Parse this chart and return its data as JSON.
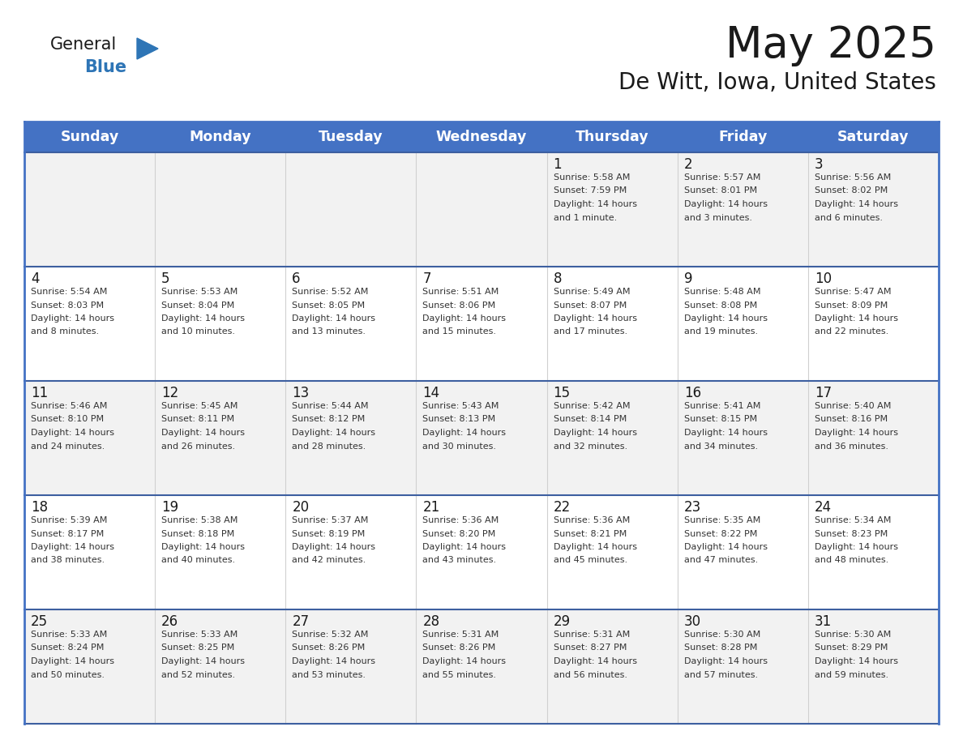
{
  "title": "May 2025",
  "subtitle": "De Witt, Iowa, United States",
  "header_bg": "#4472C4",
  "header_text_color": "#FFFFFF",
  "day_names": [
    "Sunday",
    "Monday",
    "Tuesday",
    "Wednesday",
    "Thursday",
    "Friday",
    "Saturday"
  ],
  "title_color": "#1a1a1a",
  "subtitle_color": "#1a1a1a",
  "cell_bg_odd": "#f2f2f2",
  "cell_bg_even": "#ffffff",
  "border_color": "#4472C4",
  "row_border_color": "#3d5fa0",
  "col_border_color": "#d0d0d0",
  "day_number_color": "#1a1a1a",
  "day_text_color": "#333333",
  "calendar": [
    [
      {
        "day": null,
        "text": ""
      },
      {
        "day": null,
        "text": ""
      },
      {
        "day": null,
        "text": ""
      },
      {
        "day": null,
        "text": ""
      },
      {
        "day": 1,
        "text": "Sunrise: 5:58 AM\nSunset: 7:59 PM\nDaylight: 14 hours\nand 1 minute."
      },
      {
        "day": 2,
        "text": "Sunrise: 5:57 AM\nSunset: 8:01 PM\nDaylight: 14 hours\nand 3 minutes."
      },
      {
        "day": 3,
        "text": "Sunrise: 5:56 AM\nSunset: 8:02 PM\nDaylight: 14 hours\nand 6 minutes."
      }
    ],
    [
      {
        "day": 4,
        "text": "Sunrise: 5:54 AM\nSunset: 8:03 PM\nDaylight: 14 hours\nand 8 minutes."
      },
      {
        "day": 5,
        "text": "Sunrise: 5:53 AM\nSunset: 8:04 PM\nDaylight: 14 hours\nand 10 minutes."
      },
      {
        "day": 6,
        "text": "Sunrise: 5:52 AM\nSunset: 8:05 PM\nDaylight: 14 hours\nand 13 minutes."
      },
      {
        "day": 7,
        "text": "Sunrise: 5:51 AM\nSunset: 8:06 PM\nDaylight: 14 hours\nand 15 minutes."
      },
      {
        "day": 8,
        "text": "Sunrise: 5:49 AM\nSunset: 8:07 PM\nDaylight: 14 hours\nand 17 minutes."
      },
      {
        "day": 9,
        "text": "Sunrise: 5:48 AM\nSunset: 8:08 PM\nDaylight: 14 hours\nand 19 minutes."
      },
      {
        "day": 10,
        "text": "Sunrise: 5:47 AM\nSunset: 8:09 PM\nDaylight: 14 hours\nand 22 minutes."
      }
    ],
    [
      {
        "day": 11,
        "text": "Sunrise: 5:46 AM\nSunset: 8:10 PM\nDaylight: 14 hours\nand 24 minutes."
      },
      {
        "day": 12,
        "text": "Sunrise: 5:45 AM\nSunset: 8:11 PM\nDaylight: 14 hours\nand 26 minutes."
      },
      {
        "day": 13,
        "text": "Sunrise: 5:44 AM\nSunset: 8:12 PM\nDaylight: 14 hours\nand 28 minutes."
      },
      {
        "day": 14,
        "text": "Sunrise: 5:43 AM\nSunset: 8:13 PM\nDaylight: 14 hours\nand 30 minutes."
      },
      {
        "day": 15,
        "text": "Sunrise: 5:42 AM\nSunset: 8:14 PM\nDaylight: 14 hours\nand 32 minutes."
      },
      {
        "day": 16,
        "text": "Sunrise: 5:41 AM\nSunset: 8:15 PM\nDaylight: 14 hours\nand 34 minutes."
      },
      {
        "day": 17,
        "text": "Sunrise: 5:40 AM\nSunset: 8:16 PM\nDaylight: 14 hours\nand 36 minutes."
      }
    ],
    [
      {
        "day": 18,
        "text": "Sunrise: 5:39 AM\nSunset: 8:17 PM\nDaylight: 14 hours\nand 38 minutes."
      },
      {
        "day": 19,
        "text": "Sunrise: 5:38 AM\nSunset: 8:18 PM\nDaylight: 14 hours\nand 40 minutes."
      },
      {
        "day": 20,
        "text": "Sunrise: 5:37 AM\nSunset: 8:19 PM\nDaylight: 14 hours\nand 42 minutes."
      },
      {
        "day": 21,
        "text": "Sunrise: 5:36 AM\nSunset: 8:20 PM\nDaylight: 14 hours\nand 43 minutes."
      },
      {
        "day": 22,
        "text": "Sunrise: 5:36 AM\nSunset: 8:21 PM\nDaylight: 14 hours\nand 45 minutes."
      },
      {
        "day": 23,
        "text": "Sunrise: 5:35 AM\nSunset: 8:22 PM\nDaylight: 14 hours\nand 47 minutes."
      },
      {
        "day": 24,
        "text": "Sunrise: 5:34 AM\nSunset: 8:23 PM\nDaylight: 14 hours\nand 48 minutes."
      }
    ],
    [
      {
        "day": 25,
        "text": "Sunrise: 5:33 AM\nSunset: 8:24 PM\nDaylight: 14 hours\nand 50 minutes."
      },
      {
        "day": 26,
        "text": "Sunrise: 5:33 AM\nSunset: 8:25 PM\nDaylight: 14 hours\nand 52 minutes."
      },
      {
        "day": 27,
        "text": "Sunrise: 5:32 AM\nSunset: 8:26 PM\nDaylight: 14 hours\nand 53 minutes."
      },
      {
        "day": 28,
        "text": "Sunrise: 5:31 AM\nSunset: 8:26 PM\nDaylight: 14 hours\nand 55 minutes."
      },
      {
        "day": 29,
        "text": "Sunrise: 5:31 AM\nSunset: 8:27 PM\nDaylight: 14 hours\nand 56 minutes."
      },
      {
        "day": 30,
        "text": "Sunrise: 5:30 AM\nSunset: 8:28 PM\nDaylight: 14 hours\nand 57 minutes."
      },
      {
        "day": 31,
        "text": "Sunrise: 5:30 AM\nSunset: 8:29 PM\nDaylight: 14 hours\nand 59 minutes."
      }
    ]
  ],
  "logo_text_general": "General",
  "logo_text_blue": "Blue",
  "logo_color_general": "#1a1a1a",
  "logo_color_blue": "#2E75B6",
  "logo_triangle_color": "#2E75B6"
}
